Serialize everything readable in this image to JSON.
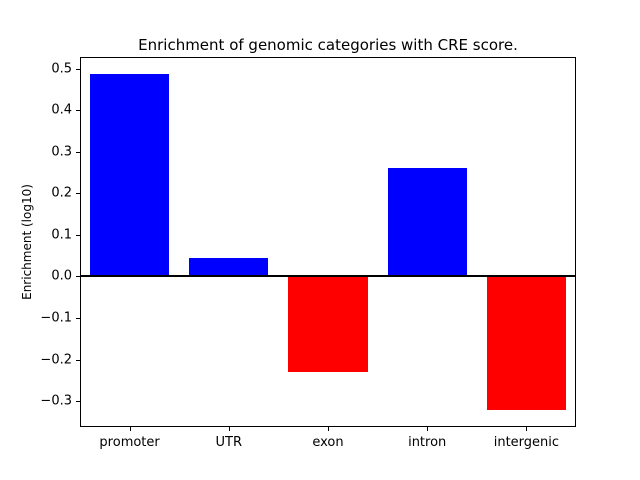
{
  "chart_data": {
    "type": "bar",
    "title": "Enrichment of genomic categories with CRE score.",
    "ylabel": "Enrichment (log10)",
    "xlabel": "",
    "categories": [
      "promoter",
      "UTR",
      "exon",
      "intron",
      "intergenic"
    ],
    "values": [
      0.488,
      0.045,
      -0.23,
      0.262,
      -0.322
    ],
    "bar_colors": [
      "#0000ff",
      "#0000ff",
      "#ff0000",
      "#0000ff",
      "#ff0000"
    ],
    "positive_color": "#0000ff",
    "negative_color": "#ff0000",
    "yticks": [
      -0.3,
      -0.2,
      -0.1,
      0.0,
      0.1,
      0.2,
      0.3,
      0.4,
      0.5
    ],
    "ylim": [
      -0.3625,
      0.5285
    ],
    "zero_line": true,
    "grid": false,
    "legend": null
  }
}
